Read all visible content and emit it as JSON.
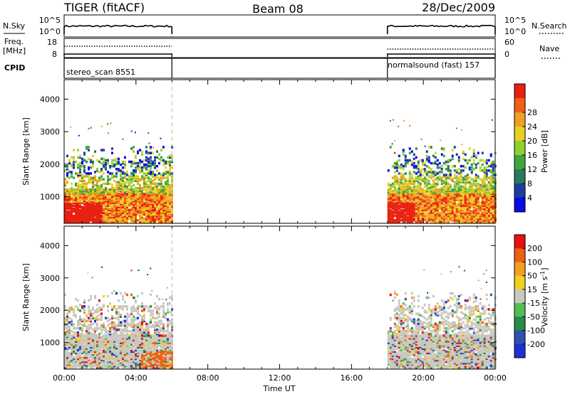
{
  "header": {
    "left_title": "TIGER (fitACF)",
    "center_title": "Beam 08",
    "right_title": "28/Dec/2009"
  },
  "status_panels": {
    "nsky_label": "N.Sky",
    "nsearch_label": "N.Search",
    "freq_label_line1": "Freq.",
    "freq_label_line2": "[MHz]",
    "nave_label": "Nave",
    "cpid_label": "CPID",
    "noise_ticks_left": [
      "10^5",
      "10^0"
    ],
    "noise_ticks_right": [
      "10^5",
      "10^0"
    ],
    "freq_ticks_left": [
      "18",
      "8"
    ],
    "nave_ticks_right": [
      "60",
      "0"
    ],
    "programs": [
      {
        "name": "stereo_scan 8551",
        "start_hour": 0,
        "end_hour": 6
      },
      {
        "name": "normalsound (fast) 157",
        "start_hour": 18,
        "end_hour": 24
      }
    ]
  },
  "chart_data": [
    {
      "type": "heatmap",
      "title": "Power",
      "ylabel": "Slant Range [km]",
      "xlabel": "",
      "xlim": [
        0,
        24
      ],
      "ylim": [
        180,
        4600
      ],
      "yticks": [
        "1000",
        "2000",
        "3000",
        "4000"
      ],
      "colorbar_label": "Power [dB]",
      "colorbar_ticks": [
        "4",
        "8",
        "12",
        "16",
        "20",
        "24",
        "28"
      ],
      "colorbar_colors": [
        "#0a0ae6",
        "#1e3ca0",
        "#2a7a5a",
        "#3fa53f",
        "#8fd030",
        "#e8d020",
        "#f0a020",
        "#f06018",
        "#e82010"
      ],
      "data_periods": [
        [
          0,
          6
        ],
        [
          18,
          24
        ]
      ]
    },
    {
      "type": "heatmap",
      "title": "Velocity",
      "ylabel": "Slant Range [km]",
      "xlabel": "Time UT",
      "xlim": [
        0,
        24
      ],
      "ylim": [
        180,
        4600
      ],
      "yticks": [
        "1000",
        "2000",
        "3000",
        "4000"
      ],
      "xticks": [
        "00:00",
        "04:00",
        "08:00",
        "12:00",
        "16:00",
        "20:00",
        "00:00"
      ],
      "colorbar_label": "Velocity [m s",
      "colorbar_label_sup": "-1",
      "colorbar_label_tail": "]",
      "colorbar_ticks": [
        "200",
        "100",
        "50",
        "15",
        "-15",
        "-50",
        "-100",
        "-200"
      ],
      "colorbar_colors": [
        "#2030d0",
        "#3050b0",
        "#2a8a4a",
        "#50c050",
        "#c8c8c0",
        "#f0d020",
        "#f0a020",
        "#f06010",
        "#e81010"
      ],
      "data_periods": [
        [
          0,
          6
        ],
        [
          18,
          24
        ]
      ]
    }
  ]
}
